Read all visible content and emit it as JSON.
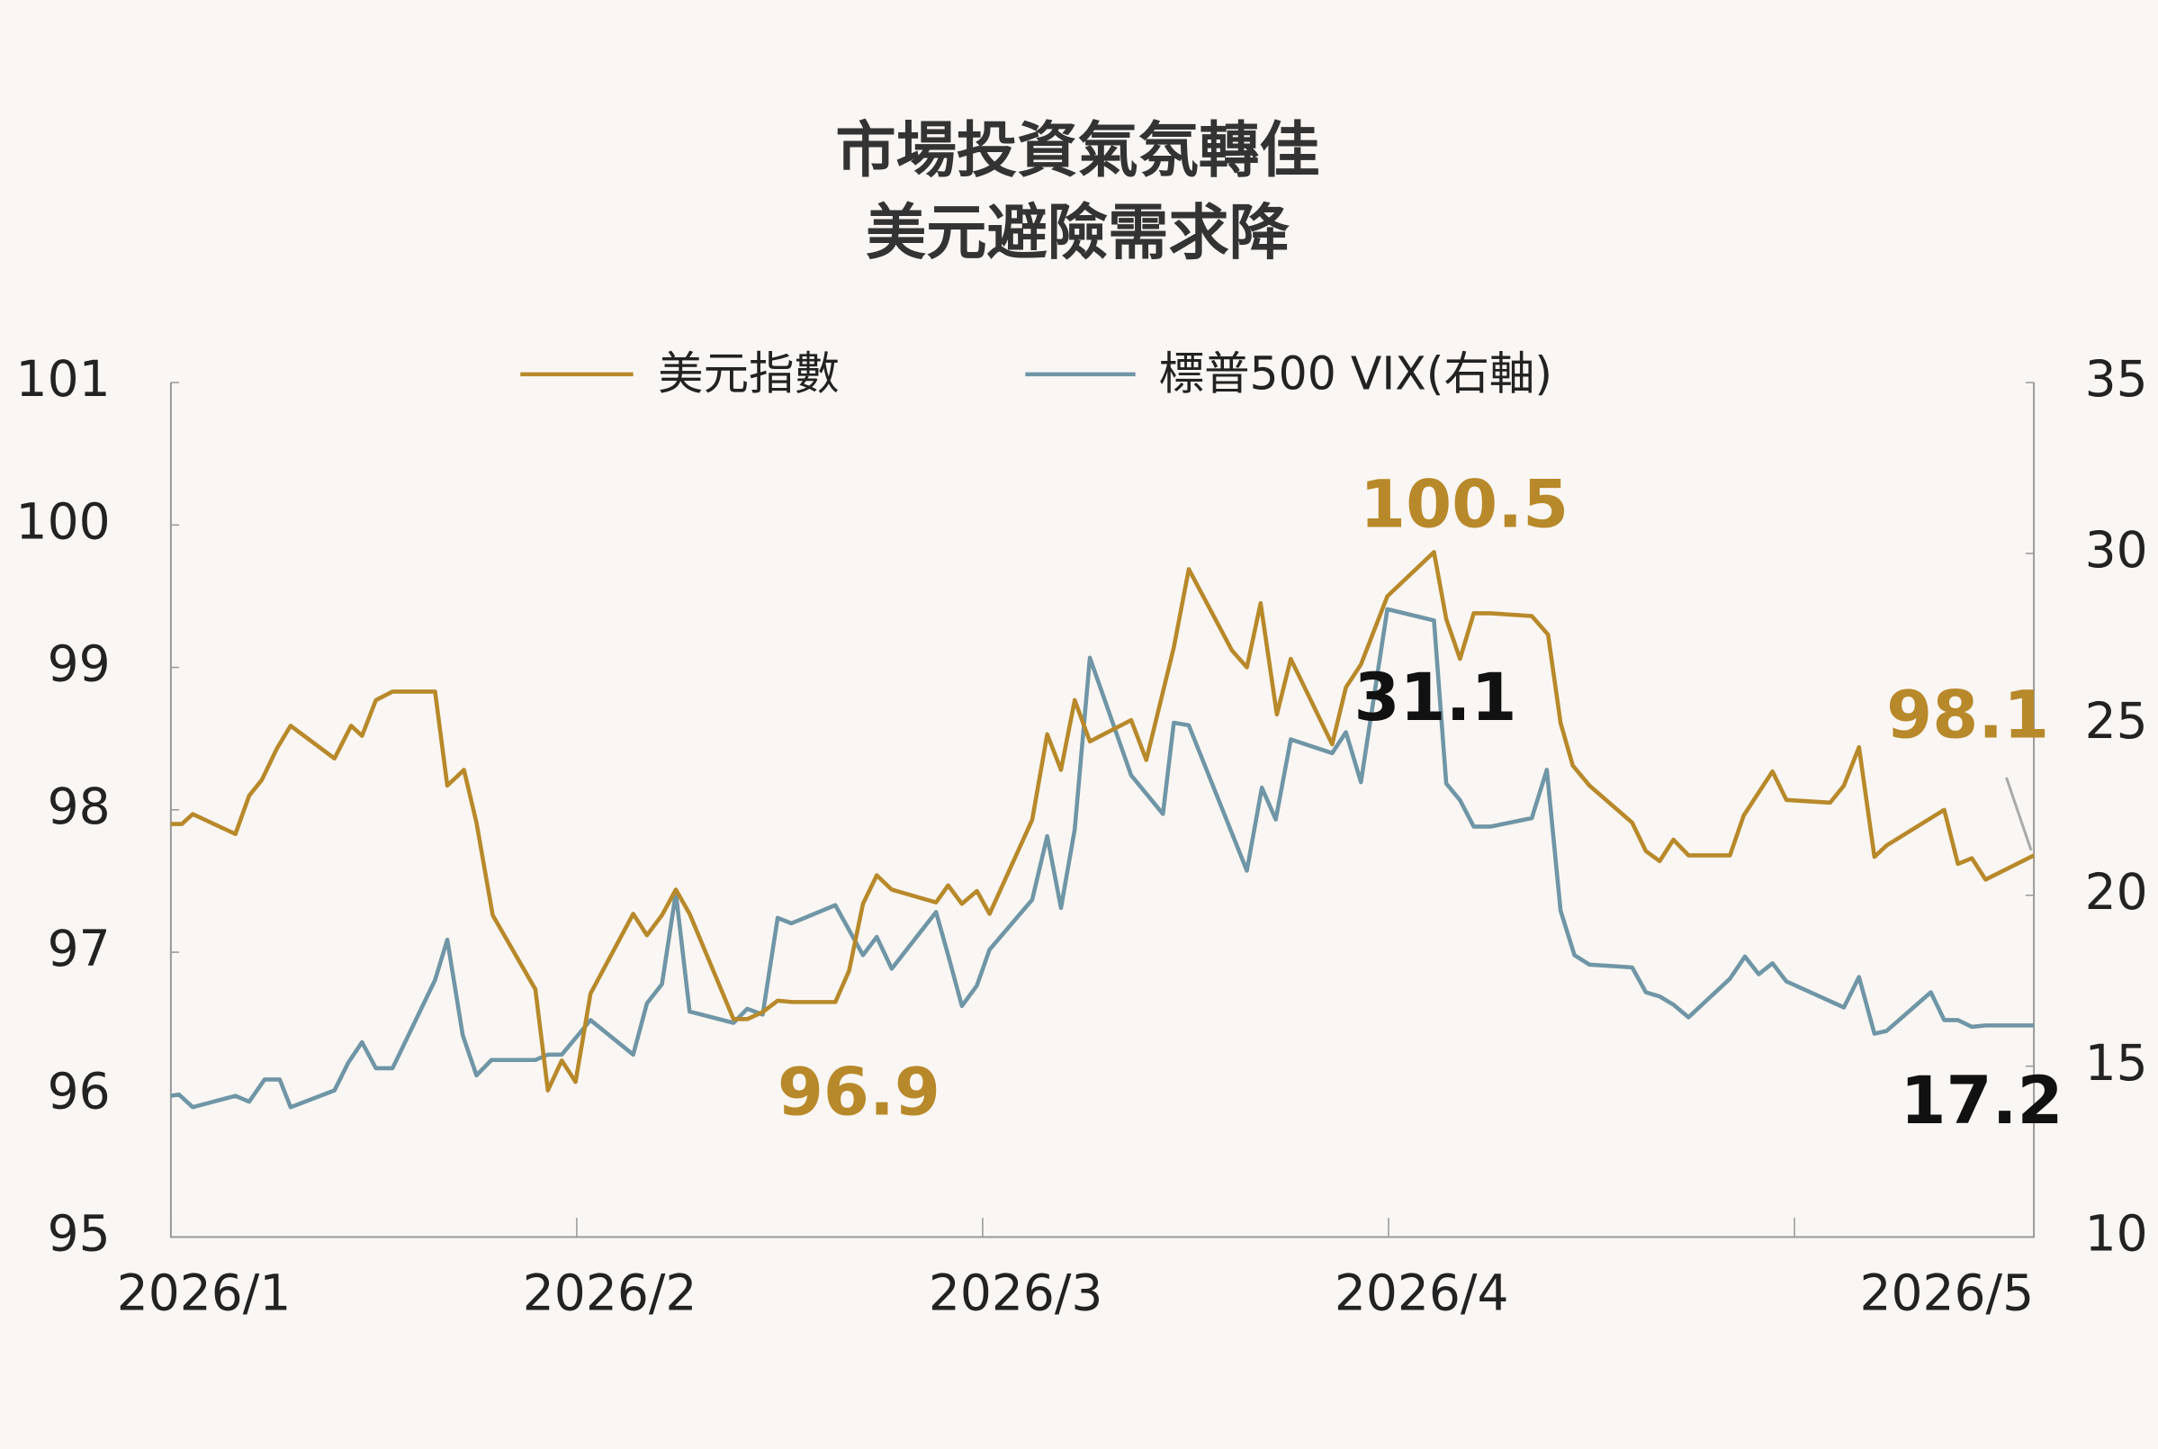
{
  "chart_data": {
    "type": "line",
    "title": [
      "市場投資氣氛轉佳",
      "美元避險需求降"
    ],
    "xlim": [
      1,
      5.59
    ],
    "xticks": [
      {
        "value": 1,
        "label": "2026/1"
      },
      {
        "value": 2,
        "label": "2026/2"
      },
      {
        "value": 3,
        "label": "2026/3"
      },
      {
        "value": 4,
        "label": "2026/4"
      },
      {
        "value": 5,
        "label": "2026/5"
      }
    ],
    "ylim": [
      95,
      101
    ],
    "yticks": [
      95,
      96,
      97,
      98,
      99,
      100,
      101
    ],
    "y2lim": [
      10,
      35
    ],
    "y2ticks": [
      10,
      15,
      20,
      25,
      30,
      35
    ],
    "series": [
      {
        "name": "美元指數",
        "color": "#b8892a",
        "axis": "y",
        "x": [
          1.0,
          1.027,
          1.054,
          1.159,
          1.193,
          1.224,
          1.261,
          1.295,
          1.403,
          1.444,
          1.471,
          1.505,
          1.546,
          1.651,
          1.681,
          1.722,
          1.753,
          1.793,
          1.898,
          1.929,
          1.963,
          1.997,
          2.034,
          2.139,
          2.173,
          2.21,
          2.244,
          2.278,
          2.386,
          2.42,
          2.458,
          2.495,
          2.532,
          2.637,
          2.671,
          2.705,
          2.739,
          2.776,
          2.885,
          2.915,
          2.949,
          2.986,
          3.017,
          3.122,
          3.159,
          3.193,
          3.227,
          3.264,
          3.366,
          3.403,
          3.471,
          3.508,
          3.614,
          3.651,
          3.685,
          3.725,
          3.759,
          3.861,
          3.895,
          3.932,
          3.997,
          4.112,
          4.142,
          4.176,
          4.21,
          4.251,
          4.353,
          4.393,
          4.424,
          4.454,
          4.495,
          4.6,
          4.634,
          4.668,
          4.702,
          4.739,
          4.841,
          4.875,
          4.946,
          4.98,
          5.088,
          5.122,
          5.159,
          5.197,
          5.227,
          5.369,
          5.403,
          5.437,
          5.471,
          5.59
        ],
        "values": [
          97.9,
          97.9,
          97.97,
          97.83,
          98.1,
          98.21,
          98.43,
          98.59,
          98.36,
          98.59,
          98.52,
          98.77,
          98.83,
          98.83,
          98.17,
          98.28,
          97.91,
          97.26,
          96.74,
          96.03,
          96.24,
          96.09,
          96.71,
          97.27,
          97.12,
          97.26,
          97.44,
          97.27,
          96.53,
          96.53,
          96.58,
          96.66,
          96.65,
          96.65,
          96.87,
          97.34,
          97.54,
          97.44,
          97.35,
          97.47,
          97.34,
          97.43,
          97.27,
          97.93,
          98.53,
          98.28,
          98.77,
          98.48,
          98.63,
          98.35,
          99.14,
          99.69,
          99.12,
          99.0,
          99.45,
          98.67,
          99.06,
          98.46,
          98.86,
          99.02,
          99.5,
          99.81,
          99.34,
          99.06,
          99.38,
          99.38,
          99.36,
          99.23,
          98.61,
          98.31,
          98.17,
          97.91,
          97.71,
          97.64,
          97.79,
          97.68,
          97.68,
          97.96,
          98.27,
          98.07,
          98.05,
          98.17,
          98.44,
          97.67,
          97.75,
          98.0,
          97.62,
          97.66,
          97.51,
          97.68
        ]
      },
      {
        "name": "標普500 VIX(右軸)",
        "color": "#6f96a6",
        "axis": "y2",
        "x": [
          1.0,
          1.02,
          1.054,
          1.159,
          1.193,
          1.231,
          1.268,
          1.295,
          1.403,
          1.437,
          1.471,
          1.505,
          1.546,
          1.651,
          1.681,
          1.719,
          1.753,
          1.79,
          1.898,
          1.929,
          1.963,
          2.034,
          2.139,
          2.173,
          2.21,
          2.244,
          2.278,
          2.386,
          2.42,
          2.458,
          2.495,
          2.529,
          2.637,
          2.705,
          2.739,
          2.776,
          2.885,
          2.915,
          2.949,
          2.986,
          3.017,
          3.122,
          3.159,
          3.193,
          3.227,
          3.264,
          3.366,
          3.444,
          3.471,
          3.508,
          3.651,
          3.688,
          3.722,
          3.759,
          3.861,
          3.895,
          3.932,
          3.997,
          4.112,
          4.142,
          4.176,
          4.21,
          4.251,
          4.353,
          4.39,
          4.424,
          4.458,
          4.495,
          4.6,
          4.634,
          4.668,
          4.702,
          4.739,
          4.841,
          4.878,
          4.912,
          4.946,
          4.98,
          5.122,
          5.159,
          5.197,
          5.227,
          5.336,
          5.369,
          5.403,
          5.437,
          5.471,
          5.59
        ],
        "values": [
          14.13,
          14.17,
          13.8,
          14.13,
          13.96,
          14.61,
          14.61,
          13.8,
          14.29,
          15.1,
          15.7,
          14.94,
          14.94,
          17.52,
          18.7,
          15.91,
          14.73,
          15.18,
          15.18,
          15.34,
          15.34,
          16.35,
          15.34,
          16.84,
          17.4,
          20.07,
          16.6,
          16.27,
          16.68,
          16.51,
          19.34,
          19.18,
          19.71,
          18.25,
          18.78,
          17.85,
          19.51,
          18.25,
          16.76,
          17.36,
          18.41,
          19.87,
          21.73,
          19.63,
          21.93,
          26.95,
          23.51,
          22.38,
          25.05,
          24.97,
          20.72,
          23.15,
          22.22,
          24.56,
          24.16,
          24.77,
          23.31,
          28.37,
          28.04,
          23.27,
          22.78,
          22.01,
          22.01,
          22.26,
          23.67,
          19.55,
          18.25,
          17.97,
          17.89,
          17.16,
          17.04,
          16.8,
          16.43,
          17.56,
          18.21,
          17.69,
          18.01,
          17.48,
          16.72,
          17.61,
          15.95,
          16.03,
          17.16,
          16.35,
          16.35,
          16.15,
          16.19,
          16.19
        ]
      }
    ],
    "annotations": [
      {
        "text": "100.5",
        "color": "#b8892a"
      },
      {
        "text": "96.9",
        "color": "#b8892a"
      },
      {
        "text": "98.1",
        "color": "#b8892a"
      },
      {
        "text": "31.1",
        "color": "#111111"
      },
      {
        "text": "17.2",
        "color": "#111111"
      }
    ]
  }
}
